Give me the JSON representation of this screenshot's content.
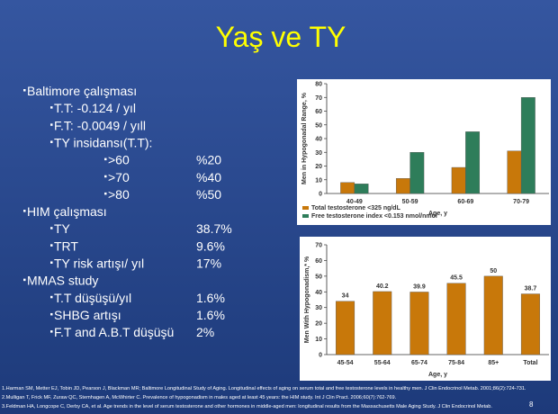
{
  "title": "Yaş ve TY",
  "sections": [
    {
      "heading": "Baltimore çalışması",
      "items": [
        {
          "text": "T.T: -0.124    / yıl"
        },
        {
          "text": "F.T:  -0.0049  / yıll"
        },
        {
          "text": "TY insidansı(T.T):",
          "items": [
            {
              "label": ">60",
              "value": "%20"
            },
            {
              "label": ">70",
              "value": "%40"
            },
            {
              "label": ">80",
              "value": "%50"
            }
          ]
        }
      ]
    },
    {
      "heading": "HIM çalışması",
      "items": [
        {
          "label": "TY",
          "value": "38.7%"
        },
        {
          "label": "TRT",
          "value": "9.6%"
        },
        {
          "label": "TY risk artışı/ yıl",
          "value": "17%"
        }
      ]
    },
    {
      "heading": "MMAS study",
      "items": [
        {
          "label": "T.T düşüşü/yıl",
          "value": "1.6%"
        },
        {
          "label": "SHBG artışı",
          "value": "1.6%"
        },
        {
          "label": "F.T and A.B.T düşüşü",
          "value": "2%"
        }
      ]
    }
  ],
  "chart_data": [
    {
      "type": "bar",
      "y_label": "Men in Hypogonadal Range, %",
      "x_label": "Age, y",
      "categories": [
        "40-49",
        "50-59",
        "60-69",
        "70-79"
      ],
      "series": [
        {
          "name": "Total testosterone <325 ng/dL",
          "color": "#c8780a",
          "values": [
            8,
            11,
            19,
            31
          ]
        },
        {
          "name": "Free testosterone index <0.153 nmol/nmol",
          "color": "#2e7d5a",
          "values": [
            7,
            30,
            45,
            70
          ]
        }
      ],
      "ylim": [
        0,
        80
      ],
      "yticks": [
        0,
        10,
        20,
        30,
        40,
        50,
        60,
        70,
        80
      ],
      "legend": "bottom-left"
    },
    {
      "type": "bar",
      "y_label": "Men With Hypogonadism,* %",
      "x_label": "Age, y",
      "categories": [
        "45-54",
        "55-64",
        "65-74",
        "75-84",
        "85+",
        "Total"
      ],
      "values": [
        34,
        40.2,
        39.9,
        45.5,
        50,
        38.7
      ],
      "color": "#c8780a",
      "show_values": true,
      "ylim": [
        0,
        70
      ],
      "yticks": [
        0,
        10,
        20,
        30,
        40,
        50,
        60,
        70
      ]
    }
  ],
  "references": [
    "1.Harman SM, Metter EJ, Tobin JD, Pearson J, Blackman MR; Baltimore Longitudinal Study of Aging. Longitudinal effects of aging on serum total and free testosterone levels in healthy men. J Clin Endocrinol Metab. 2001;86(2):724-731.",
    "2.Mulligan T, Frick MF, Zuraw QC, Stemhagen A, McWhirter C. Prevalence of hypogonadism in males aged at least 45 years: the HIM study. Int J Clin Pract. 2006;60(7):762-769.",
    "3.Feldman HA, Longcope C, Derby CA, et al. Age trends in the level of serum testosterone and other hormones in middle-aged men: longitudinal results from the Massachusetts Male Aging Study. J Clin Endocrinol Metab."
  ],
  "page_number": "8"
}
